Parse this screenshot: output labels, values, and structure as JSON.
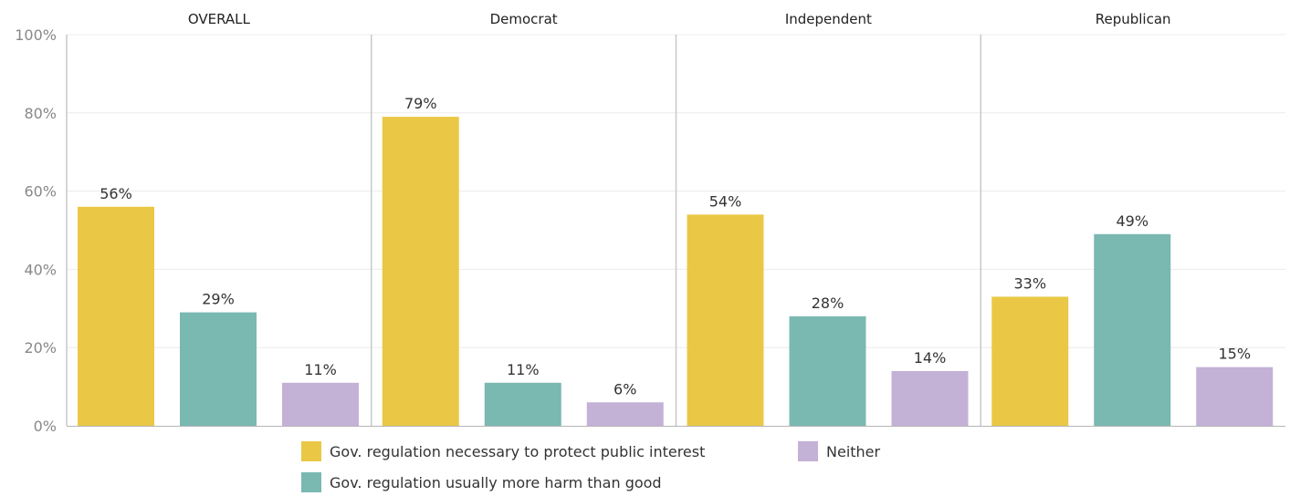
{
  "chart_data": {
    "type": "bar",
    "panels": [
      "OVERALL",
      "Democrat",
      "Independent",
      "Republican"
    ],
    "series": [
      {
        "name": "Gov. regulation necessary to protect public interest",
        "color": "#EAC846",
        "values": [
          56,
          79,
          54,
          33
        ]
      },
      {
        "name": "Gov. regulation usually more harm than good",
        "color": "#7AB8B2",
        "values": [
          29,
          11,
          28,
          49
        ]
      },
      {
        "name": "Neither",
        "color": "#C3B1D6",
        "values": [
          11,
          6,
          14,
          15
        ]
      }
    ],
    "value_labels": [
      [
        "56%",
        "79%",
        "54%",
        "33%"
      ],
      [
        "29%",
        "11%",
        "28%",
        "49%"
      ],
      [
        "11%",
        "6%",
        "14%",
        "15%"
      ]
    ],
    "yticks": [
      0,
      20,
      40,
      60,
      80,
      100
    ],
    "ytick_labels": [
      "0%",
      "20%",
      "40%",
      "60%",
      "80%",
      "100%"
    ],
    "ylim": [
      0,
      100
    ],
    "grid": true,
    "legend_position": "bottom",
    "title": "",
    "xlabel": "",
    "ylabel": ""
  }
}
